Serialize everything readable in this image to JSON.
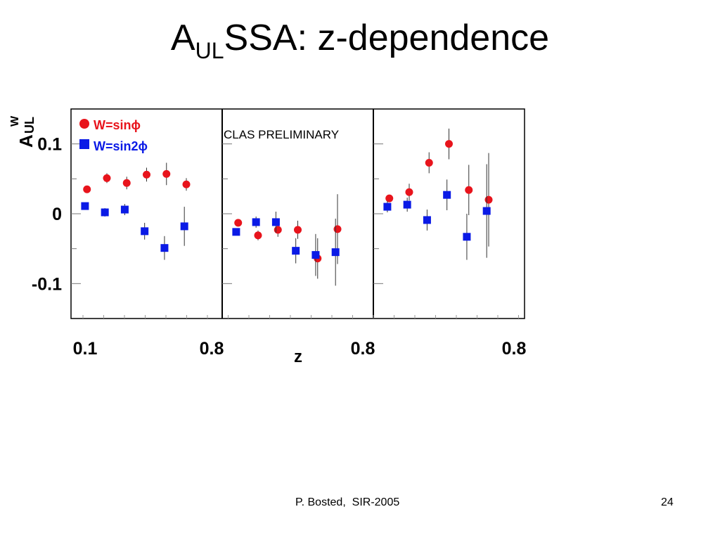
{
  "slide": {
    "title_main": "A",
    "title_sub": "UL",
    "title_rest": "SSA: z-dependence",
    "footer": "P. Bosted,  SIR-2005",
    "page_number": "24"
  },
  "chart_data": {
    "type": "scatter",
    "title": "",
    "ylabel_main": "A",
    "ylabel_sup": "W",
    "ylabel_sub": "UL",
    "xlabel": "z",
    "annotation": "CLAS PRELIMINARY",
    "ylim": [
      -0.15,
      0.15
    ],
    "yticks": [
      -0.1,
      0,
      0.1
    ],
    "ytick_labels": [
      "-0.1",
      "0",
      "0.1"
    ],
    "xlim": [
      0.1,
      0.8
    ],
    "x_tick_labels": [
      "0.1",
      "0.8",
      "0.8",
      "0.8"
    ],
    "legend_position": "top-left",
    "grid": false,
    "colors": {
      "sinphi": "#e8141c",
      "sin2phi": "#0a1ae6"
    },
    "panels": [
      {
        "series": [
          {
            "name": "W=sinϕ",
            "marker": "circle",
            "x": [
              0.15,
              0.25,
              0.35,
              0.45,
              0.55,
              0.65
            ],
            "y": [
              0.035,
              0.051,
              0.044,
              0.056,
              0.057,
              0.042
            ],
            "err": [
              0.003,
              0.007,
              0.009,
              0.01,
              0.016,
              0.009
            ]
          },
          {
            "name": "W=sin2ϕ",
            "marker": "square",
            "x": [
              0.14,
              0.24,
              0.34,
              0.44,
              0.54,
              0.64
            ],
            "y": [
              0.011,
              0.002,
              0.006,
              -0.025,
              -0.049,
              -0.018
            ],
            "err": [
              0.004,
              0.006,
              0.008,
              0.012,
              0.017,
              0.028
            ]
          }
        ]
      },
      {
        "series": [
          {
            "name": "W=sinϕ",
            "marker": "circle",
            "x": [
              0.15,
              0.25,
              0.35,
              0.45,
              0.55,
              0.65
            ],
            "y": [
              -0.013,
              -0.031,
              -0.023,
              -0.023,
              -0.064,
              -0.022
            ],
            "err": [
              0.003,
              0.007,
              0.01,
              0.013,
              0.029,
              0.05
            ]
          },
          {
            "name": "W=sin2ϕ",
            "marker": "square",
            "x": [
              0.14,
              0.24,
              0.34,
              0.44,
              0.54,
              0.64
            ],
            "y": [
              -0.026,
              -0.012,
              -0.012,
              -0.053,
              -0.059,
              -0.055
            ],
            "err": [
              0.004,
              0.008,
              0.015,
              0.018,
              0.03,
              0.048
            ]
          }
        ]
      },
      {
        "series": [
          {
            "name": "W=sinϕ",
            "marker": "circle",
            "x": [
              0.15,
              0.25,
              0.35,
              0.45,
              0.55,
              0.65
            ],
            "y": [
              0.022,
              0.031,
              0.073,
              0.1,
              0.034,
              0.02
            ],
            "err": [
              0.005,
              0.012,
              0.015,
              0.022,
              0.036,
              0.067
            ]
          },
          {
            "name": "W=sin2ϕ",
            "marker": "square",
            "x": [
              0.14,
              0.24,
              0.34,
              0.44,
              0.54,
              0.64
            ],
            "y": [
              0.01,
              0.013,
              -0.009,
              0.027,
              -0.033,
              0.004
            ],
            "err": [
              0.008,
              0.01,
              0.015,
              0.022,
              0.033,
              0.067
            ]
          }
        ]
      }
    ]
  }
}
